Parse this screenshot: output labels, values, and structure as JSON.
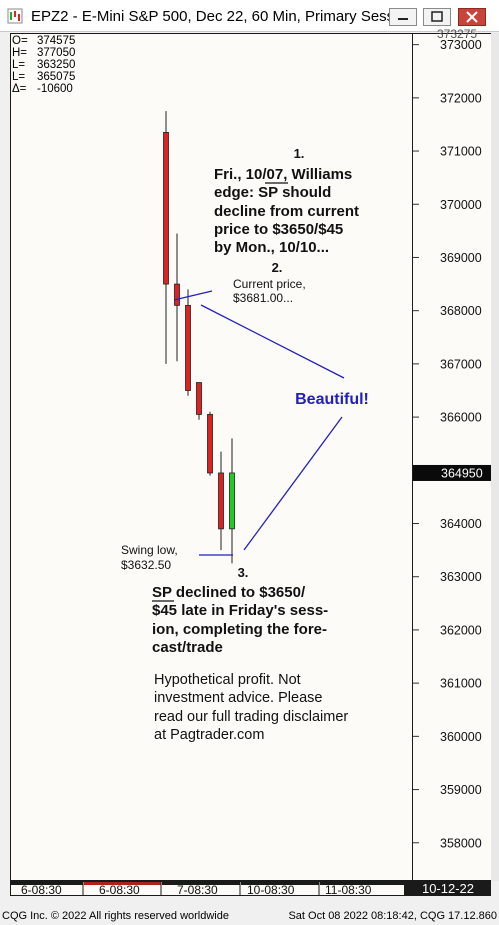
{
  "window": {
    "title": "EPZ2 - E-Mini S&P 500, Dec 22, 60 Min, Primary Sess...",
    "colors": {
      "titlebar": "#ffffff",
      "close_button": "#c8443a"
    }
  },
  "ohlc_box": [
    {
      "key": "O=",
      "value": "374575"
    },
    {
      "key": "H=",
      "value": "377050"
    },
    {
      "key": "L=",
      "value": "363250"
    },
    {
      "key": "L=",
      "value": "365075"
    },
    {
      "key": "Δ=",
      "value": "-10600"
    }
  ],
  "price_axis": {
    "top_partial_label": "373275",
    "current_price_label": "364950"
  },
  "time_axis": {
    "labels": [
      "6-08:30",
      "6-08:30",
      "7-08:30",
      "10-08:30",
      "11-08:30"
    ],
    "segment_colors": [
      "#1a1a1a",
      "#b02020",
      "#1a1a1a",
      "#1a1a1a",
      "#1a1a1a"
    ],
    "date_box": "10-12-22"
  },
  "footer": {
    "left": "CQG Inc. © 2022 All rights reserved worldwide",
    "right": "Sat Oct 08 2022 08:18:42, CQG 17.12.860"
  },
  "annotations": {
    "note1": {
      "number": "1.",
      "lines": [
        "Fri., 10/07, Williams",
        "edge: SP should",
        "decline from current",
        "price to $3650/$45",
        "by Mon., 10/10..."
      ]
    },
    "note2": {
      "number": "2.",
      "lines": [
        "Current price,",
        "$3681.00..."
      ]
    },
    "beautiful": "Beautiful!",
    "swing_low": {
      "lines": [
        "Swing low,",
        "$3632.50"
      ]
    },
    "note3": {
      "number": "3.",
      "lines": [
        "SP declined to $3650/",
        "$45 late in Friday's sess-",
        "ion, completing the fore-",
        "cast/trade"
      ]
    },
    "disclaimer": [
      "Hypothetical profit. Not",
      "investment advice. Please",
      "read our full trading disclaimer",
      "at Pagtrader.com"
    ]
  },
  "chart_data": {
    "type": "candlestick",
    "ylim": [
      357300,
      373200
    ],
    "yticks": [
      358000,
      359000,
      360000,
      361000,
      362000,
      363000,
      364000,
      365000,
      366000,
      367000,
      368000,
      369000,
      370000,
      371000,
      372000,
      373000
    ],
    "ytick_labels": [
      "358000",
      "359000",
      "360000",
      "361000",
      "362000",
      "363000",
      "364000",
      "365000",
      "366000",
      "367000",
      "368000",
      "369000",
      "370000",
      "371000",
      "372000",
      "373000"
    ],
    "current_price": 364950,
    "up_color": "#22cc22",
    "down_color": "#dd2222",
    "candles": [
      {
        "x": 0,
        "open": 371350,
        "high": 371750,
        "low": 367000,
        "close": 368500
      },
      {
        "x": 1,
        "open": 368500,
        "high": 369450,
        "low": 367050,
        "close": 368100
      },
      {
        "x": 2,
        "open": 368100,
        "high": 368400,
        "low": 366400,
        "close": 366500
      },
      {
        "x": 3,
        "open": 366650,
        "high": 366650,
        "low": 365950,
        "close": 366050
      },
      {
        "x": 4,
        "open": 366050,
        "high": 366100,
        "low": 364900,
        "close": 364950
      },
      {
        "x": 5,
        "open": 364950,
        "high": 365350,
        "low": 363500,
        "close": 363900
      },
      {
        "x": 6,
        "open": 363900,
        "high": 365600,
        "low": 363250,
        "close": 364950
      }
    ]
  }
}
